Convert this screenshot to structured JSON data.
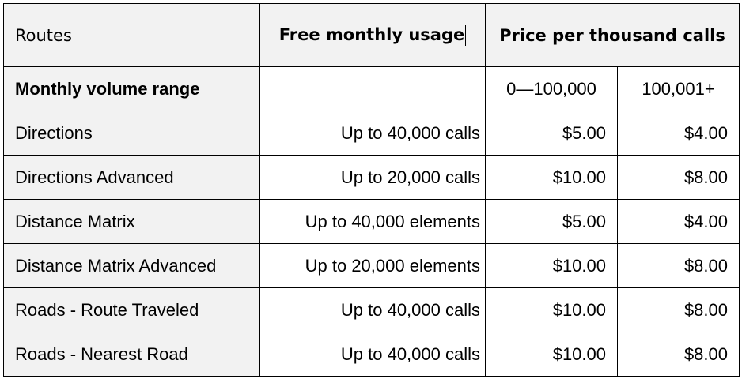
{
  "table": {
    "header": {
      "routes": "Routes",
      "free_usage": "Free monthly usage",
      "price_per_thousand": "Price per thousand calls"
    },
    "volume_row": {
      "label": "Monthly volume range",
      "free": "",
      "tier1": "0—100,000",
      "tier2": "100,001+"
    },
    "rows": [
      {
        "name": "Directions",
        "free": "Up to 40,000 calls",
        "tier1": "$5.00",
        "tier2": "$4.00"
      },
      {
        "name": "Directions Advanced",
        "free": "Up to 20,000 calls",
        "tier1": "$10.00",
        "tier2": "$8.00"
      },
      {
        "name": "Distance Matrix",
        "free": "Up to 40,000 elements",
        "tier1": "$5.00",
        "tier2": "$4.00"
      },
      {
        "name": "Distance Matrix Advanced",
        "free": "Up to 20,000 elements",
        "tier1": "$10.00",
        "tier2": "$8.00"
      },
      {
        "name": "Roads - Route Traveled",
        "free": "Up to 40,000 calls",
        "tier1": "$10.00",
        "tier2": "$8.00"
      },
      {
        "name": "Roads - Nearest Road",
        "free": "Up to 40,000 calls",
        "tier1": "$10.00",
        "tier2": "$8.00"
      }
    ]
  },
  "colors": {
    "shaded_cell": "#f2f2f2",
    "border": "#000000",
    "text": "#000000"
  }
}
